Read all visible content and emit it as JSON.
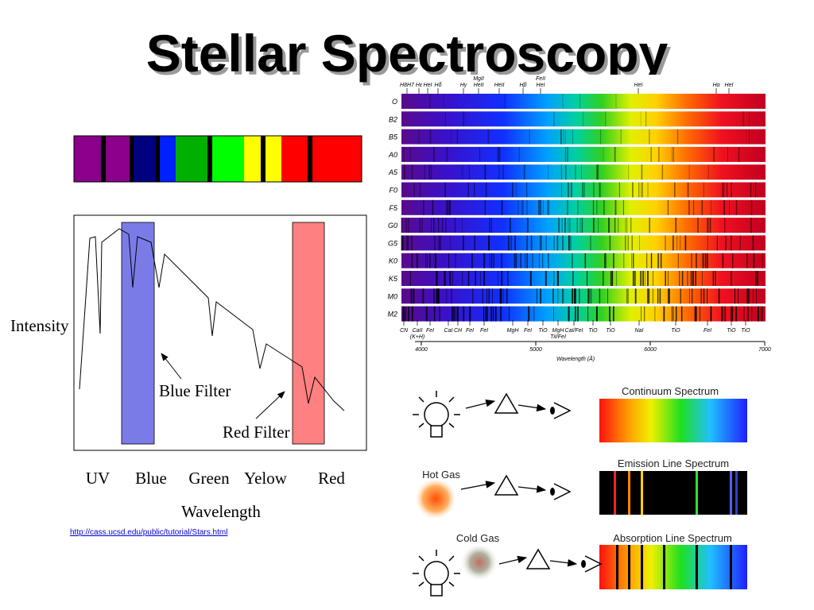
{
  "title": "Stellar Spectroscopy",
  "filter_plot": {
    "y_label": "Intensity",
    "blue_filter": "Blue Filter",
    "red_filter": "Red Filter",
    "x_labels": [
      "UV",
      "Blue",
      "Green",
      "Yelow",
      "Red"
    ],
    "x_label": "Wavelength"
  },
  "link": "http://cass.ucsd.edu/public/tutorial/Stars.html",
  "stellar_spectra": {
    "classes": [
      "O",
      "B2",
      "B5",
      "A0",
      "A5",
      "F0",
      "F5",
      "G0",
      "G5",
      "K0",
      "K5",
      "M0",
      "M2"
    ],
    "top_lines": [
      [
        "H8H7"
      ],
      [
        "Hε"
      ],
      [
        "HeI"
      ],
      [
        "Hδ"
      ],
      [
        "Hγ"
      ],
      [
        "MgII",
        "HeII"
      ],
      [
        "HeII"
      ],
      [
        "Hβ"
      ],
      [
        "FeII",
        "HeI"
      ],
      [
        "HeI"
      ],
      [
        "Hα"
      ],
      [
        "HeI"
      ]
    ],
    "bottom_lines": [
      [
        "CN"
      ],
      [
        "CaII",
        "(K+H)"
      ],
      [
        "FeI"
      ],
      [
        "CaI"
      ],
      [
        "CH"
      ],
      [
        "FeI"
      ],
      [
        "FeI"
      ],
      [
        "MgH"
      ],
      [
        "FeI"
      ],
      [
        "TiO"
      ],
      [
        "MgH",
        "TiI/FeI"
      ],
      [
        "CaI/FeI"
      ],
      [
        "TiO"
      ],
      [
        "TiO"
      ],
      [
        "NaI"
      ],
      [
        "TiO"
      ],
      [
        "FeI"
      ],
      [
        "TiO"
      ],
      [
        "TiO"
      ]
    ],
    "axis_ticks": [
      4000,
      5000,
      6000,
      7000
    ],
    "axis_label": "Wavelength (Å)"
  },
  "spectrum_types": {
    "continuum": "Continuum Spectrum",
    "hot_gas": "Hot Gas",
    "emission": "Emission Line Spectrum",
    "cold_gas": "Cold Gas",
    "absorption": "Absorption Line Spectrum"
  }
}
